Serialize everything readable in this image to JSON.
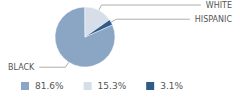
{
  "chart_data": {
    "type": "pie",
    "categories": [
      "BLACK",
      "WHITE",
      "HISPANIC"
    ],
    "values": [
      81.6,
      15.3,
      3.1
    ],
    "value_labels": [
      "81.6%",
      "15.3%",
      "3.1%"
    ],
    "colors": [
      "#8aa6c4",
      "#d5dee9",
      "#2e5b87"
    ],
    "legend": "bottom"
  }
}
